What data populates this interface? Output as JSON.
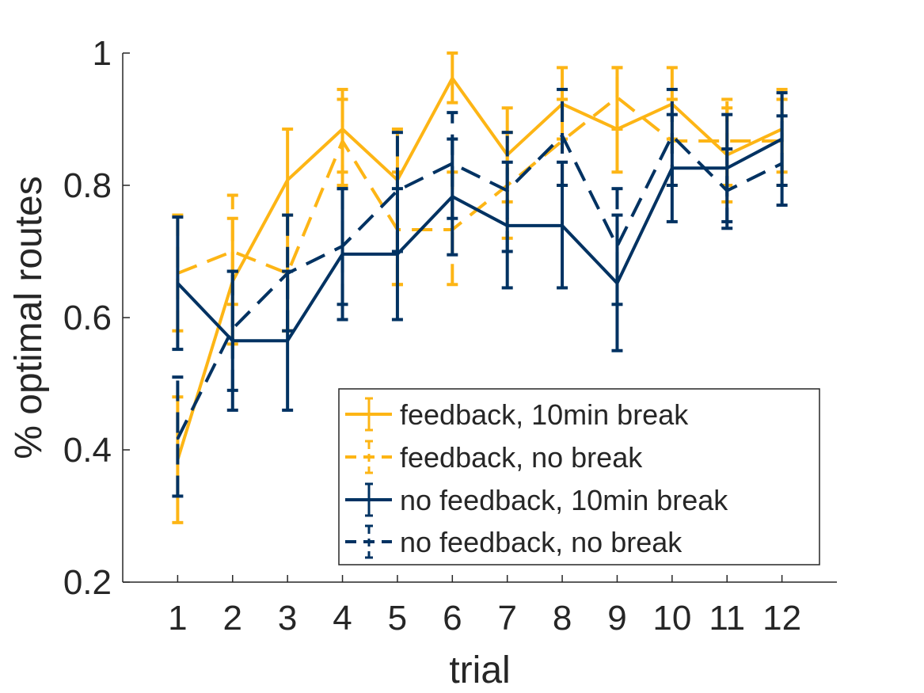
{
  "chart_data": {
    "type": "line",
    "title": "",
    "xlabel": "trial",
    "ylabel": "% optimal routes",
    "x": [
      1,
      2,
      3,
      4,
      5,
      6,
      7,
      8,
      9,
      10,
      11,
      12
    ],
    "x_tick_labels": [
      "1",
      "2",
      "3",
      "4",
      "5",
      "6",
      "7",
      "8",
      "9",
      "10",
      "11",
      "12"
    ],
    "xlim": [
      0,
      13
    ],
    "ylim": [
      0.2,
      1.0
    ],
    "y_ticks": [
      0.2,
      0.4,
      0.6,
      0.8,
      1.0
    ],
    "y_tick_labels": [
      "0.2",
      "0.4",
      "0.6",
      "0.8",
      "1"
    ],
    "grid": false,
    "legend_position": "bottom-right",
    "series": [
      {
        "name": "feedback, 10min break",
        "color": "#FDB515",
        "dash": "solid",
        "values": [
          0.385,
          0.655,
          0.808,
          0.885,
          0.808,
          0.962,
          0.846,
          0.923,
          0.885,
          0.923,
          0.846,
          0.885
        ],
        "lower": [
          0.29,
          0.56,
          0.58,
          0.82,
          0.65,
          0.925,
          0.775,
          0.87,
          0.82,
          0.87,
          0.775,
          0.82
        ],
        "upper": [
          0.48,
          0.75,
          0.885,
          0.945,
          0.885,
          1.0,
          0.917,
          0.978,
          0.978,
          0.978,
          0.917,
          0.945
        ]
      },
      {
        "name": "feedback, no break",
        "color": "#FDB515",
        "dash": "dashed",
        "values": [
          0.667,
          0.7,
          0.667,
          0.867,
          0.733,
          0.733,
          0.8,
          0.867,
          0.933,
          0.867,
          0.867,
          0.867
        ],
        "lower": [
          0.58,
          0.62,
          0.58,
          0.8,
          0.65,
          0.65,
          0.72,
          0.8,
          0.885,
          0.8,
          0.8,
          0.8
        ],
        "upper": [
          0.755,
          0.785,
          0.755,
          0.93,
          0.82,
          0.82,
          0.88,
          0.93,
          0.978,
          0.93,
          0.93,
          0.93
        ]
      },
      {
        "name": "no feedback, 10min break",
        "color": "#003262",
        "dash": "solid",
        "values": [
          0.652,
          0.565,
          0.565,
          0.696,
          0.696,
          0.783,
          0.739,
          0.739,
          0.652,
          0.826,
          0.826,
          0.87
        ],
        "lower": [
          0.552,
          0.46,
          0.46,
          0.597,
          0.597,
          0.695,
          0.645,
          0.645,
          0.55,
          0.745,
          0.745,
          0.8
        ],
        "upper": [
          0.752,
          0.67,
          0.67,
          0.795,
          0.795,
          0.87,
          0.835,
          0.835,
          0.755,
          0.907,
          0.907,
          0.94
        ]
      },
      {
        "name": "no feedback, no break",
        "color": "#003262",
        "dash": "dashed",
        "values": [
          0.417,
          0.583,
          0.667,
          0.708,
          0.792,
          0.833,
          0.792,
          0.875,
          0.708,
          0.875,
          0.792,
          0.833
        ],
        "lower": [
          0.33,
          0.49,
          0.58,
          0.62,
          0.7,
          0.75,
          0.7,
          0.8,
          0.62,
          0.8,
          0.735,
          0.77
        ],
        "upper": [
          0.51,
          0.67,
          0.755,
          0.795,
          0.88,
          0.91,
          0.88,
          0.945,
          0.795,
          0.945,
          0.855,
          0.905
        ]
      }
    ]
  }
}
